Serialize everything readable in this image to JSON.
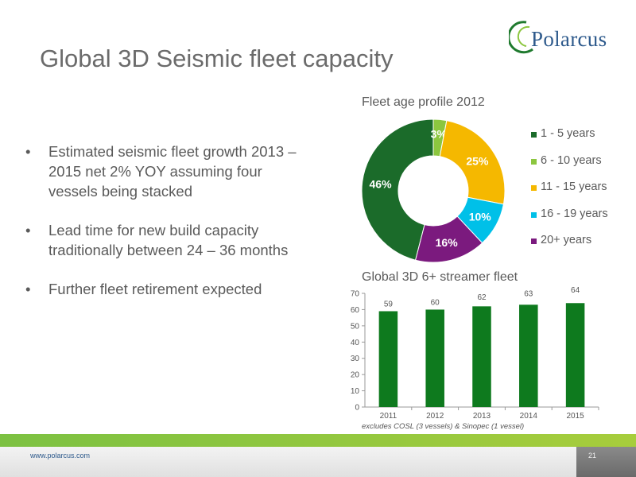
{
  "header": {
    "title": "Global 3D Seismic fleet capacity",
    "logo_text": "Polarcus",
    "logo_mark": "®"
  },
  "bullets": [
    {
      "text": "Estimated seismic fleet growth 2013 – 2015 net 2% YOY assuming four vessels being stacked"
    },
    {
      "text": "Lead time for new build capacity traditionally between 24 – 36 months"
    },
    {
      "text": "Further fleet retirement expected"
    }
  ],
  "bullet_glyph": "•",
  "chart_data": [
    {
      "type": "pie",
      "donut": true,
      "title": "Fleet age profile 2012",
      "legend_position": "right",
      "slices": [
        {
          "label": "1 - 5 years",
          "value": 46,
          "display": "46%",
          "color": "#1b6b2a"
        },
        {
          "label": "6 - 10 years",
          "value": 3,
          "display": "3%",
          "color": "#8cc63f"
        },
        {
          "label": "11 - 15 years",
          "value": 25,
          "display": "25%",
          "color": "#f5b800"
        },
        {
          "label": "16 - 19 years",
          "value": 10,
          "display": "10%",
          "color": "#00c0e8"
        },
        {
          "label": "20+ years",
          "value": 16,
          "display": "16%",
          "color": "#7b1a7e"
        }
      ]
    },
    {
      "type": "bar",
      "title": "Global 3D 6+ streamer fleet",
      "categories": [
        "2011",
        "2012",
        "2013",
        "2014",
        "2015"
      ],
      "values": [
        59,
        60,
        62,
        63,
        64
      ],
      "ylim": [
        0,
        70
      ],
      "yticks": [
        0,
        10,
        20,
        30,
        40,
        50,
        60,
        70
      ],
      "bar_color": "#0e7a1e",
      "grid": false,
      "footnote": "excludes COSL (3 vessels) & Sinopec (1 vessel)"
    }
  ],
  "footer": {
    "url": "www.polarcus.com",
    "page_number": "21"
  }
}
